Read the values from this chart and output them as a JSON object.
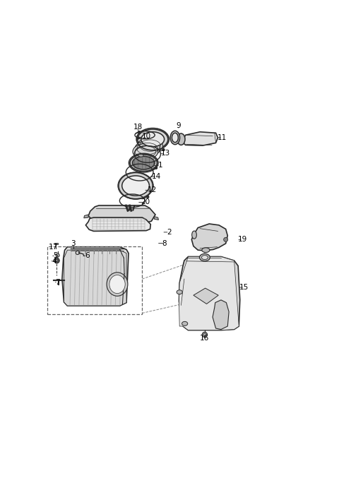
{
  "bg_color": "#ffffff",
  "line_color": "#2a2a2a",
  "label_positions": {
    "18": [
      0.365,
      0.938,
      0.365,
      0.958
    ],
    "10": [
      0.408,
      0.907,
      0.395,
      0.922
    ],
    "9": [
      0.518,
      0.948,
      0.518,
      0.963
    ],
    "11": [
      0.66,
      0.918,
      0.685,
      0.918
    ],
    "13": [
      0.445,
      0.858,
      0.468,
      0.858
    ],
    "1": [
      0.418,
      0.812,
      0.448,
      0.812
    ],
    "14": [
      0.405,
      0.77,
      0.435,
      0.77
    ],
    "12": [
      0.385,
      0.718,
      0.418,
      0.718
    ],
    "20": [
      0.36,
      0.672,
      0.393,
      0.672
    ],
    "2": [
      0.455,
      0.558,
      0.482,
      0.558
    ],
    "8": [
      0.435,
      0.516,
      0.465,
      0.516
    ],
    "17": [
      0.028,
      0.502,
      0.042,
      0.502
    ],
    "3": [
      0.118,
      0.505,
      0.118,
      0.516
    ],
    "5": [
      0.032,
      0.468,
      0.05,
      0.468
    ],
    "4": [
      0.028,
      0.448,
      0.044,
      0.448
    ],
    "6": [
      0.148,
      0.468,
      0.17,
      0.468
    ],
    "7": [
      0.042,
      0.368,
      0.058,
      0.368
    ],
    "19": [
      0.74,
      0.53,
      0.762,
      0.53
    ],
    "15": [
      0.742,
      0.348,
      0.768,
      0.348
    ],
    "16": [
      0.618,
      0.172,
      0.618,
      0.155
    ]
  }
}
